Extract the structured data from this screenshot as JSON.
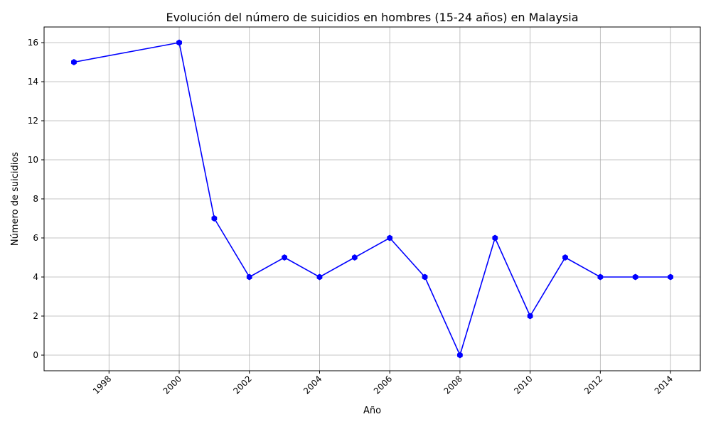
{
  "chart_data": {
    "type": "line",
    "title": "Evolución del número de suicidios en hombres (15-24 años) en Malaysia",
    "xlabel": "Año",
    "ylabel": "Número de suicidios",
    "x": [
      1997,
      2000,
      2001,
      2002,
      2003,
      2004,
      2005,
      2006,
      2007,
      2008,
      2009,
      2010,
      2011,
      2012,
      2013,
      2014
    ],
    "series": [
      {
        "values": [
          15,
          16,
          7,
          4,
          5,
          4,
          5,
          6,
          4,
          0,
          6,
          2,
          5,
          4,
          4,
          4
        ]
      }
    ],
    "xlim": [
      1996.15,
      2014.85
    ],
    "ylim": [
      -0.8,
      16.8
    ],
    "xticks": [
      1998,
      2000,
      2002,
      2004,
      2006,
      2008,
      2010,
      2012,
      2014
    ],
    "yticks": [
      0,
      2,
      4,
      6,
      8,
      10,
      12,
      14,
      16
    ],
    "xtick_rotation": 45,
    "grid": true,
    "line_color": "#0000ff",
    "marker": "hexagon"
  }
}
